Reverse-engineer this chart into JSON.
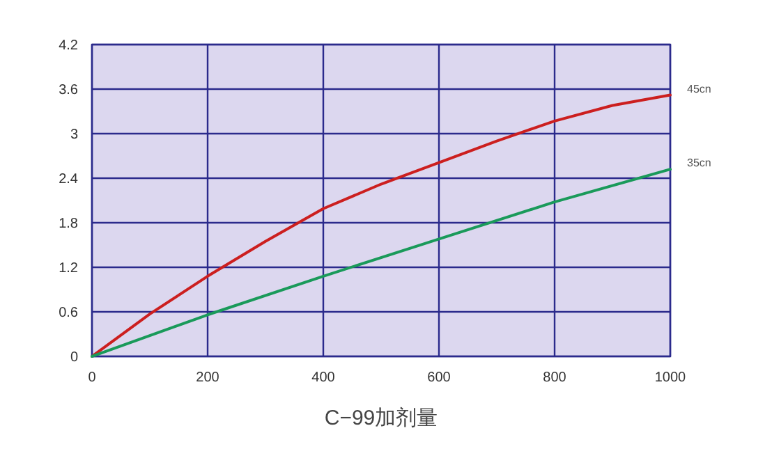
{
  "chart_data": {
    "type": "line",
    "xlabel": "C−99加剂量",
    "xlim": [
      0,
      1000
    ],
    "ylim": [
      0,
      4.2
    ],
    "xticks": [
      0,
      200,
      400,
      600,
      800,
      1000
    ],
    "yticks": [
      0,
      0.6,
      1.2,
      1.8,
      2.4,
      3,
      3.6,
      4.2
    ],
    "grid": true,
    "series": [
      {
        "name": "45cn",
        "color": "#cc1f1f",
        "x": [
          0,
          100,
          200,
          300,
          400,
          500,
          600,
          700,
          800,
          900,
          1000
        ],
        "values": [
          0,
          0.57,
          1.08,
          1.55,
          1.99,
          2.32,
          2.61,
          2.9,
          3.17,
          3.38,
          3.52
        ]
      },
      {
        "name": "35cn",
        "color": "#1a9a5a",
        "x": [
          0,
          200,
          400,
          600,
          800,
          1000
        ],
        "values": [
          0,
          0.56,
          1.08,
          1.58,
          2.08,
          2.52
        ]
      }
    ]
  }
}
